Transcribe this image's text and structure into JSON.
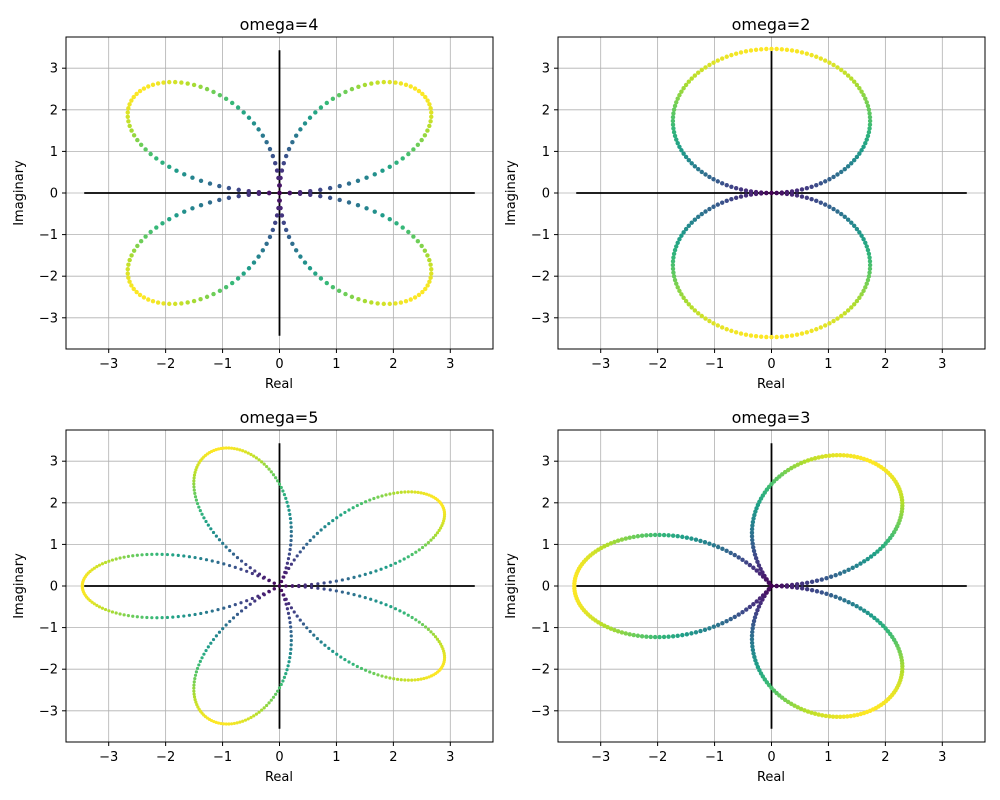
{
  "figure": {
    "panels": [
      {
        "title": "omega=4",
        "xlabel": "Real",
        "ylabel": "Imaginary"
      },
      {
        "title": "omega=2",
        "xlabel": "Real",
        "ylabel": "Imaginary"
      },
      {
        "title": "omega=5",
        "xlabel": "Real",
        "ylabel": "Imaginary"
      },
      {
        "title": "omega=3",
        "xlabel": "Real",
        "ylabel": "Imaginary"
      }
    ]
  },
  "chart_data": [
    {
      "type": "scatter",
      "title": "omega=4",
      "omega": 4,
      "xlabel": "Real",
      "ylabel": "Imaginary",
      "xlim": [
        -3.75,
        3.75
      ],
      "ylim": [
        -3.75,
        3.75
      ],
      "xticks": [
        -3,
        -2,
        -1,
        0,
        1,
        2,
        3
      ],
      "yticks": [
        -3,
        -2,
        -1,
        0,
        1,
        2,
        3
      ],
      "grid": true,
      "colormap": "viridis",
      "points": 240,
      "curve": "z(t) = |sin(omega*t/2)| * 2*sqrt(3) * e^{it}, t in [0, 2*pi), colored by magnitude",
      "axes_lines": {
        "horizontal": [
          -3.43,
          3.43
        ],
        "vertical": [
          -3.43,
          3.43
        ],
        "color": "#000000"
      }
    },
    {
      "type": "scatter",
      "title": "omega=2",
      "omega": 2,
      "xlabel": "Real",
      "ylabel": "Imaginary",
      "xlim": [
        -3.75,
        3.75
      ],
      "ylim": [
        -3.75,
        3.75
      ],
      "xticks": [
        -3,
        -2,
        -1,
        0,
        1,
        2,
        3
      ],
      "yticks": [
        -3,
        -2,
        -1,
        0,
        1,
        2,
        3
      ],
      "grid": true,
      "colormap": "viridis",
      "points": 240,
      "axes_lines": {
        "horizontal": [
          -3.43,
          3.43
        ],
        "vertical": [
          -3.43,
          3.43
        ],
        "color": "#000000"
      }
    },
    {
      "type": "scatter",
      "title": "omega=5",
      "omega": 5,
      "xlabel": "Real",
      "ylabel": "Imaginary",
      "xlim": [
        -3.75,
        3.75
      ],
      "ylim": [
        -3.75,
        3.75
      ],
      "xticks": [
        -3,
        -2,
        -1,
        0,
        1,
        2,
        3
      ],
      "yticks": [
        -3,
        -2,
        -1,
        0,
        1,
        2,
        3
      ],
      "grid": true,
      "colormap": "viridis",
      "points": 480,
      "axes_lines": {
        "horizontal": [
          -3.43,
          3.43
        ],
        "vertical": [
          -3.43,
          3.43
        ],
        "color": "#000000"
      }
    },
    {
      "type": "scatter",
      "title": "omega=3",
      "omega": 3,
      "xlabel": "Real",
      "ylabel": "Imaginary",
      "xlim": [
        -3.75,
        3.75
      ],
      "ylim": [
        -3.75,
        3.75
      ],
      "xticks": [
        -3,
        -2,
        -1,
        0,
        1,
        2,
        3
      ],
      "yticks": [
        -3,
        -2,
        -1,
        0,
        1,
        2,
        3
      ],
      "grid": true,
      "colormap": "viridis",
      "points": 360,
      "axes_lines": {
        "horizontal": [
          -3.43,
          3.43
        ],
        "vertical": [
          -3.43,
          3.43
        ],
        "color": "#000000"
      }
    }
  ]
}
